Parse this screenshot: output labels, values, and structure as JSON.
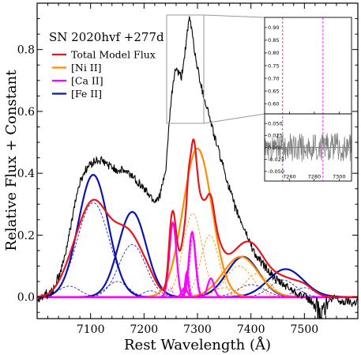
{
  "chart_data": {
    "type": "line",
    "title": "",
    "annotation": "SN 2020hvf +277d",
    "xlabel": "Rest Wavelength (Å)",
    "ylabel": "Relative Flux + Constant",
    "xlim": [
      7000,
      7600
    ],
    "ylim": [
      -0.07,
      0.95
    ],
    "xticks": [
      7100,
      7200,
      7300,
      7400,
      7500
    ],
    "yticks": [
      0.0,
      0.2,
      0.4,
      0.6,
      0.8
    ],
    "ytick_labels": [
      "0.0",
      "0.2",
      "0.4",
      "0.6",
      "0.8"
    ],
    "legend_position": "upper-left",
    "legend": [
      {
        "label": "Total Model Flux",
        "color": "#e8141e"
      },
      {
        "label": "[Ni II]",
        "color": "#ff8c00"
      },
      {
        "label": "[Ca II]",
        "color": "#ff00ff"
      },
      {
        "label": "[Fe II]",
        "color": "#0a14b4"
      }
    ],
    "colors": {
      "observed": "#000000",
      "total": "#e8141e",
      "ni": "#ff8c00",
      "ca": "#ff00ff",
      "fe": "#0a14b4",
      "zero_line": "#1e9696"
    },
    "observed_spectrum": {
      "x": [
        7000,
        7010,
        7020,
        7030,
        7040,
        7050,
        7060,
        7070,
        7080,
        7090,
        7100,
        7110,
        7120,
        7130,
        7140,
        7150,
        7160,
        7170,
        7180,
        7190,
        7200,
        7210,
        7220,
        7230,
        7240,
        7250,
        7255,
        7260,
        7265,
        7270,
        7275,
        7280,
        7285,
        7290,
        7295,
        7300,
        7310,
        7320,
        7330,
        7340,
        7350,
        7360,
        7370,
        7380,
        7390,
        7400,
        7410,
        7420,
        7430,
        7440,
        7450,
        7460,
        7470,
        7480,
        7490,
        7500,
        7510,
        7520,
        7530,
        7540,
        7550,
        7560,
        7570,
        7580,
        7590,
        7600
      ],
      "y": [
        0.0,
        0.0,
        0.01,
        0.02,
        0.06,
        0.12,
        0.2,
        0.3,
        0.37,
        0.41,
        0.43,
        0.44,
        0.44,
        0.43,
        0.42,
        0.41,
        0.41,
        0.4,
        0.39,
        0.37,
        0.35,
        0.33,
        0.31,
        0.33,
        0.4,
        0.62,
        0.7,
        0.74,
        0.72,
        0.71,
        0.77,
        0.84,
        0.9,
        0.86,
        0.79,
        0.74,
        0.66,
        0.6,
        0.53,
        0.47,
        0.41,
        0.35,
        0.29,
        0.25,
        0.21,
        0.17,
        0.13,
        0.11,
        0.09,
        0.07,
        0.05,
        0.04,
        0.03,
        0.02,
        0.01,
        0.0,
        -0.01,
        -0.03,
        -0.06,
        -0.02,
        -0.01,
        0.0,
        -0.02,
        -0.01,
        -0.02,
        -0.01
      ]
    },
    "series": [
      {
        "name": "Total Model Flux",
        "line_group": "total",
        "components": [
          {
            "center": 7105,
            "amp": 0.305,
            "sigma": 30
          },
          {
            "center": 7060,
            "amp": 0.035,
            "sigma": 20
          },
          {
            "center": 7150,
            "amp": 0.05,
            "sigma": 20
          },
          {
            "center": 7178,
            "amp": 0.17,
            "sigma": 25
          },
          {
            "center": 7212,
            "amp": 0.02,
            "sigma": 14
          },
          {
            "center": 7460,
            "amp": 0.055,
            "sigma": 24
          },
          {
            "center": 7500,
            "amp": 0.03,
            "sigma": 18
          },
          {
            "center": 7400,
            "amp": 0.04,
            "sigma": 25
          },
          {
            "center": 7291,
            "amp": 0.27,
            "sigma": 18
          },
          {
            "center": 7323,
            "amp": 0.2,
            "sigma": 17
          },
          {
            "center": 7378,
            "amp": 0.1,
            "sigma": 25
          },
          {
            "center": 7412,
            "amp": 0.075,
            "sigma": 23
          },
          {
            "center": 7350,
            "amp": 0.03,
            "sigma": 20
          },
          {
            "center": 7254,
            "amp": 0.23,
            "sigma": 6.5
          },
          {
            "center": 7249,
            "amp": 0.03,
            "sigma": 4
          },
          {
            "center": 7292,
            "amp": 0.2,
            "sigma": 6
          },
          {
            "center": 7283,
            "amp": 0.07,
            "sigma": 3
          },
          {
            "center": 7325,
            "amp": 0.06,
            "sigma": 6
          },
          {
            "center": 7276,
            "amp": 0.03,
            "sigma": 5
          }
        ]
      },
      {
        "name": "[Ni II]",
        "line_group": "ni",
        "total": [
          {
            "center": 7300,
            "amp": 0.48,
            "sigma": 27
          },
          {
            "center": 7381,
            "amp": 0.13,
            "sigma": 33
          }
        ],
        "components": [
          {
            "center": 7291,
            "amp": 0.27,
            "sigma": 18
          },
          {
            "center": 7323,
            "amp": 0.2,
            "sigma": 17
          },
          {
            "center": 7378,
            "amp": 0.1,
            "sigma": 25
          },
          {
            "center": 7412,
            "amp": 0.075,
            "sigma": 23
          },
          {
            "center": 7350,
            "amp": 0.03,
            "sigma": 20
          }
        ]
      },
      {
        "name": "[Ca II]",
        "line_group": "ca",
        "total": [
          {
            "center": 7254,
            "amp": 0.24,
            "sigma": 6.5
          },
          {
            "center": 7290,
            "amp": 0.21,
            "sigma": 6
          },
          {
            "center": 7280,
            "amp": 0.08,
            "sigma": 3
          },
          {
            "center": 7325,
            "amp": 0.06,
            "sigma": 6
          },
          {
            "center": 7276,
            "amp": 0.03,
            "sigma": 5
          }
        ],
        "components": [
          {
            "center": 7254,
            "amp": 0.23,
            "sigma": 6.5
          },
          {
            "center": 7249,
            "amp": 0.03,
            "sigma": 4
          },
          {
            "center": 7292,
            "amp": 0.2,
            "sigma": 6
          },
          {
            "center": 7283,
            "amp": 0.07,
            "sigma": 3
          },
          {
            "center": 7325,
            "amp": 0.06,
            "sigma": 6
          }
        ]
      },
      {
        "name": "[Fe II]",
        "line_group": "fe",
        "total": [
          {
            "center": 7105,
            "amp": 0.395,
            "sigma": 28
          },
          {
            "center": 7178,
            "amp": 0.275,
            "sigma": 26
          },
          {
            "center": 7385,
            "amp": 0.13,
            "sigma": 30
          },
          {
            "center": 7465,
            "amp": 0.09,
            "sigma": 33
          }
        ],
        "components": [
          {
            "center": 7105,
            "amp": 0.305,
            "sigma": 30
          },
          {
            "center": 7060,
            "amp": 0.035,
            "sigma": 20
          },
          {
            "center": 7150,
            "amp": 0.05,
            "sigma": 20
          },
          {
            "center": 7178,
            "amp": 0.17,
            "sigma": 25
          },
          {
            "center": 7212,
            "amp": 0.02,
            "sigma": 14
          },
          {
            "center": 7460,
            "amp": 0.055,
            "sigma": 24
          },
          {
            "center": 7500,
            "amp": 0.03,
            "sigma": 18
          },
          {
            "center": 7400,
            "amp": 0.04,
            "sigma": 25
          }
        ]
      }
    ],
    "inset": {
      "xlim": [
        7240,
        7310
      ],
      "upper": {
        "ylim": [
          0.56,
          0.94
        ],
        "yticks": [
          0.6,
          0.65,
          0.7,
          0.75,
          0.8,
          0.85,
          0.9
        ],
        "ytick_labels": [
          "0.60",
          "0.65",
          "0.70",
          "0.75",
          "0.80",
          "0.85",
          "0.90"
        ]
      },
      "lower": {
        "ylim": [
          -0.07,
          0.07
        ],
        "yticks": [
          -0.05,
          -0.025,
          0.0,
          0.025,
          0.05
        ],
        "ytick_labels": [
          "-0.050",
          "-0.025",
          "0.000",
          "0.025",
          "0.050"
        ]
      },
      "xticks": [
        7260,
        7280,
        7300
      ],
      "marker_lines_x": [
        7254.5,
        7287
      ],
      "residual_color": "#808080"
    }
  }
}
